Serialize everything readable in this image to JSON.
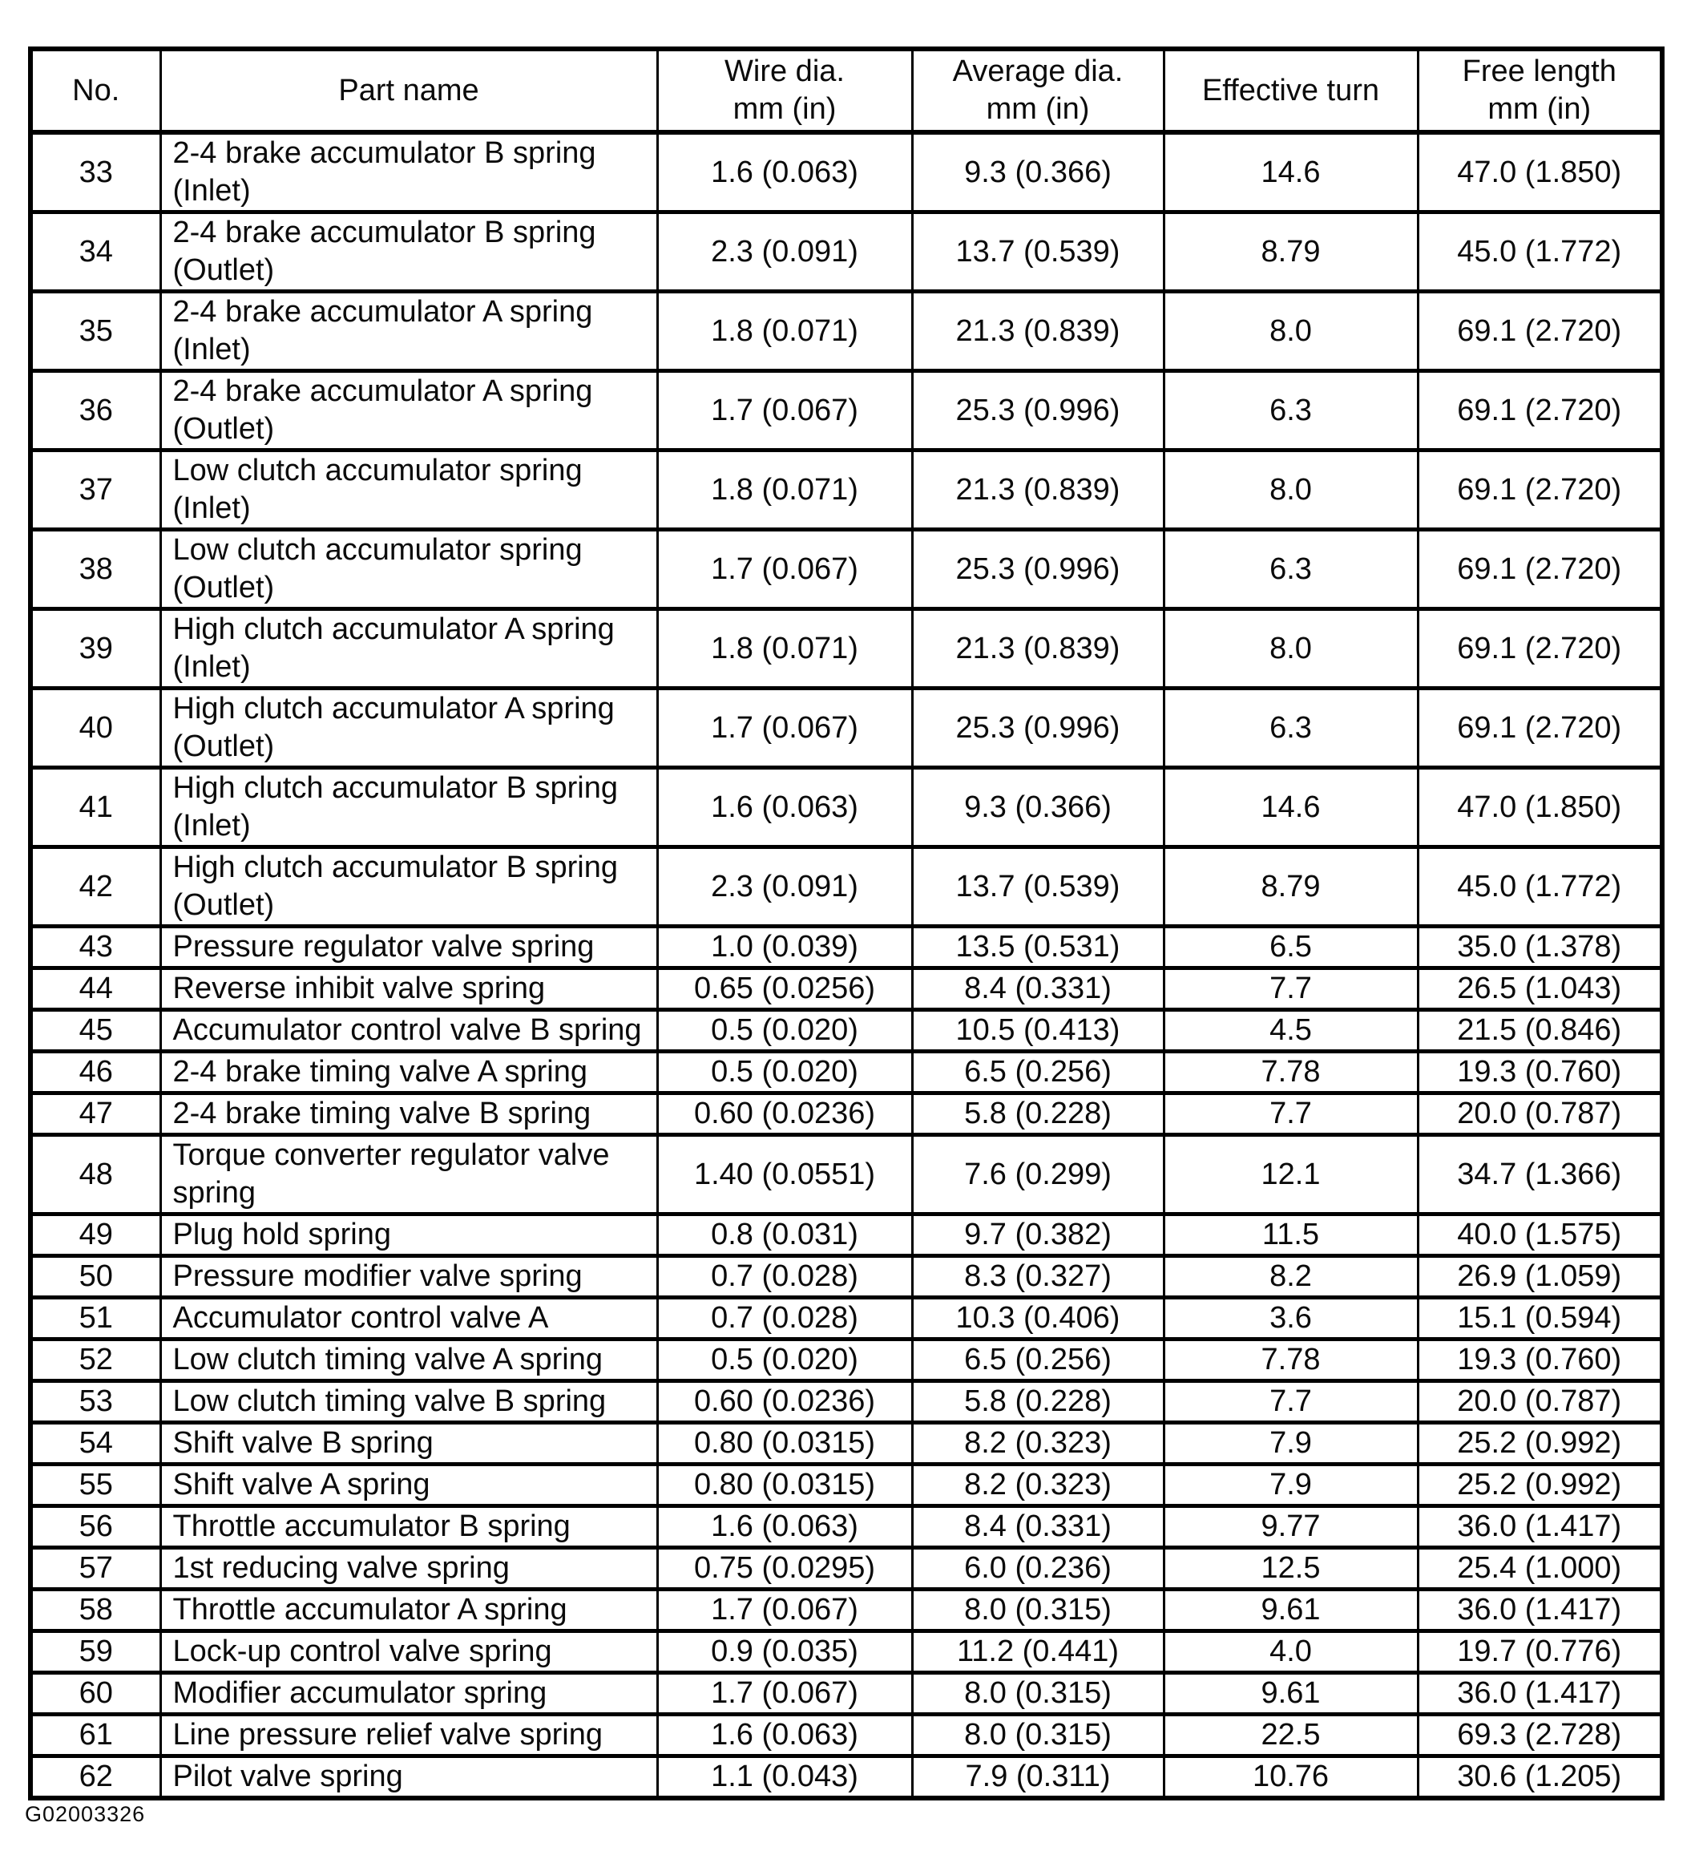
{
  "table": {
    "columns": [
      "No.",
      "Part name",
      "Wire dia.\nmm (in)",
      "Average dia.\nmm (in)",
      "Effective turn",
      "Free length\nmm (in)"
    ],
    "rows": [
      {
        "no": "33",
        "part": "2-4 brake accumulator B spring\n(Inlet)",
        "wire": "1.6 (0.063)",
        "avg": "9.3 (0.366)",
        "turn": "14.6",
        "free": "47.0 (1.850)"
      },
      {
        "no": "34",
        "part": "2-4 brake accumulator B spring\n(Outlet)",
        "wire": "2.3 (0.091)",
        "avg": "13.7 (0.539)",
        "turn": "8.79",
        "free": "45.0 (1.772)"
      },
      {
        "no": "35",
        "part": "2-4 brake accumulator A spring\n(Inlet)",
        "wire": "1.8 (0.071)",
        "avg": "21.3 (0.839)",
        "turn": "8.0",
        "free": "69.1 (2.720)"
      },
      {
        "no": "36",
        "part": "2-4 brake accumulator A spring\n(Outlet)",
        "wire": "1.7 (0.067)",
        "avg": "25.3 (0.996)",
        "turn": "6.3",
        "free": "69.1 (2.720)"
      },
      {
        "no": "37",
        "part": "Low clutch accumulator spring\n(Inlet)",
        "wire": "1.8 (0.071)",
        "avg": "21.3 (0.839)",
        "turn": "8.0",
        "free": "69.1 (2.720)"
      },
      {
        "no": "38",
        "part": "Low clutch accumulator spring\n(Outlet)",
        "wire": "1.7 (0.067)",
        "avg": "25.3 (0.996)",
        "turn": "6.3",
        "free": "69.1 (2.720)"
      },
      {
        "no": "39",
        "part": "High clutch accumulator A spring\n(Inlet)",
        "wire": "1.8 (0.071)",
        "avg": "21.3 (0.839)",
        "turn": "8.0",
        "free": "69.1 (2.720)"
      },
      {
        "no": "40",
        "part": "High clutch accumulator A spring\n(Outlet)",
        "wire": "1.7 (0.067)",
        "avg": "25.3 (0.996)",
        "turn": "6.3",
        "free": "69.1 (2.720)"
      },
      {
        "no": "41",
        "part": "High clutch accumulator B spring\n(Inlet)",
        "wire": "1.6 (0.063)",
        "avg": "9.3 (0.366)",
        "turn": "14.6",
        "free": "47.0 (1.850)"
      },
      {
        "no": "42",
        "part": "High clutch accumulator B spring\n(Outlet)",
        "wire": "2.3 (0.091)",
        "avg": "13.7 (0.539)",
        "turn": "8.79",
        "free": "45.0 (1.772)"
      },
      {
        "no": "43",
        "part": "Pressure regulator valve spring",
        "wire": "1.0 (0.039)",
        "avg": "13.5 (0.531)",
        "turn": "6.5",
        "free": "35.0 (1.378)"
      },
      {
        "no": "44",
        "part": "Reverse inhibit valve spring",
        "wire": "0.65 (0.0256)",
        "avg": "8.4 (0.331)",
        "turn": "7.7",
        "free": "26.5 (1.043)"
      },
      {
        "no": "45",
        "part": "Accumulator control valve B spring",
        "wire": "0.5 (0.020)",
        "avg": "10.5 (0.413)",
        "turn": "4.5",
        "free": "21.5 (0.846)"
      },
      {
        "no": "46",
        "part": "2-4 brake timing valve A spring",
        "wire": "0.5 (0.020)",
        "avg": "6.5 (0.256)",
        "turn": "7.78",
        "free": "19.3 (0.760)"
      },
      {
        "no": "47",
        "part": "2-4 brake timing valve B spring",
        "wire": "0.60 (0.0236)",
        "avg": "5.8 (0.228)",
        "turn": "7.7",
        "free": "20.0 (0.787)"
      },
      {
        "no": "48",
        "part": "Torque converter regulator valve\nspring",
        "wire": "1.40 (0.0551)",
        "avg": "7.6 (0.299)",
        "turn": "12.1",
        "free": "34.7 (1.366)"
      },
      {
        "no": "49",
        "part": "Plug hold spring",
        "wire": "0.8 (0.031)",
        "avg": "9.7 (0.382)",
        "turn": "11.5",
        "free": "40.0 (1.575)"
      },
      {
        "no": "50",
        "part": "Pressure modifier valve spring",
        "wire": "0.7 (0.028)",
        "avg": "8.3 (0.327)",
        "turn": "8.2",
        "free": "26.9 (1.059)"
      },
      {
        "no": "51",
        "part": "Accumulator control valve A",
        "wire": "0.7 (0.028)",
        "avg": "10.3 (0.406)",
        "turn": "3.6",
        "free": "15.1 (0.594)"
      },
      {
        "no": "52",
        "part": "Low clutch timing valve A spring",
        "wire": "0.5 (0.020)",
        "avg": "6.5 (0.256)",
        "turn": "7.78",
        "free": "19.3 (0.760)"
      },
      {
        "no": "53",
        "part": "Low clutch timing valve B spring",
        "wire": "0.60 (0.0236)",
        "avg": "5.8 (0.228)",
        "turn": "7.7",
        "free": "20.0 (0.787)"
      },
      {
        "no": "54",
        "part": "Shift valve B spring",
        "wire": "0.80 (0.0315)",
        "avg": "8.2 (0.323)",
        "turn": "7.9",
        "free": "25.2 (0.992)"
      },
      {
        "no": "55",
        "part": "Shift valve A spring",
        "wire": "0.80 (0.0315)",
        "avg": "8.2 (0.323)",
        "turn": "7.9",
        "free": "25.2 (0.992)"
      },
      {
        "no": "56",
        "part": "Throttle accumulator B spring",
        "wire": "1.6 (0.063)",
        "avg": "8.4 (0.331)",
        "turn": "9.77",
        "free": "36.0 (1.417)"
      },
      {
        "no": "57",
        "part": "1st reducing valve spring",
        "wire": "0.75 (0.0295)",
        "avg": "6.0 (0.236)",
        "turn": "12.5",
        "free": "25.4 (1.000)"
      },
      {
        "no": "58",
        "part": "Throttle accumulator A spring",
        "wire": "1.7 (0.067)",
        "avg": "8.0 (0.315)",
        "turn": "9.61",
        "free": "36.0 (1.417)"
      },
      {
        "no": "59",
        "part": "Lock-up control valve spring",
        "wire": "0.9 (0.035)",
        "avg": "11.2 (0.441)",
        "turn": "4.0",
        "free": "19.7 (0.776)"
      },
      {
        "no": "60",
        "part": "Modifier accumulator spring",
        "wire": "1.7 (0.067)",
        "avg": "8.0 (0.315)",
        "turn": "9.61",
        "free": "36.0 (1.417)"
      },
      {
        "no": "61",
        "part": "Line pressure relief valve spring",
        "wire": "1.6 (0.063)",
        "avg": "8.0 (0.315)",
        "turn": "22.5",
        "free": "69.3 (2.728)"
      },
      {
        "no": "62",
        "part": "Pilot valve spring",
        "wire": "1.1 (0.043)",
        "avg": "7.9 (0.311)",
        "turn": "10.76",
        "free": "30.6 (1.205)"
      }
    ]
  },
  "footer": {
    "code": "G02003326"
  }
}
